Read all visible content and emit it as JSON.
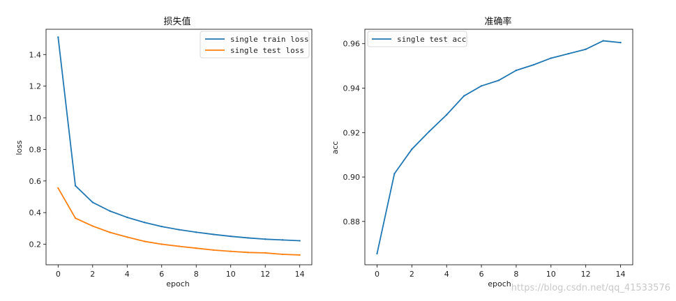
{
  "chart_data": [
    {
      "type": "line",
      "title": "损失值",
      "xlabel": "epoch",
      "ylabel": "loss",
      "xlim": [
        -0.7,
        14.7
      ],
      "ylim": [
        0.07,
        1.56
      ],
      "xticks": [
        0,
        2,
        4,
        6,
        8,
        10,
        12,
        14
      ],
      "yticks": [
        0.2,
        0.4,
        0.6,
        0.8,
        1.0,
        1.2,
        1.4
      ],
      "ytick_labels": [
        "0.2",
        "0.4",
        "0.6",
        "0.8",
        "1.0",
        "1.2",
        "1.4"
      ],
      "legend_position": "top-right",
      "x": [
        0,
        1,
        2,
        3,
        4,
        5,
        6,
        7,
        8,
        9,
        10,
        11,
        12,
        13,
        14
      ],
      "series": [
        {
          "name": "single train loss",
          "color": "#1f77b4",
          "values": [
            1.51,
            0.57,
            0.465,
            0.41,
            0.37,
            0.338,
            0.312,
            0.292,
            0.276,
            0.262,
            0.25,
            0.24,
            0.232,
            0.227,
            0.222
          ]
        },
        {
          "name": "single test loss",
          "color": "#ff7f0e",
          "values": [
            0.555,
            0.365,
            0.315,
            0.275,
            0.245,
            0.218,
            0.2,
            0.187,
            0.175,
            0.163,
            0.155,
            0.148,
            0.145,
            0.136,
            0.132
          ]
        }
      ]
    },
    {
      "type": "line",
      "title": "准确率",
      "xlabel": "epoch",
      "ylabel": "acc",
      "xlim": [
        -0.7,
        14.7
      ],
      "ylim": [
        0.8605,
        0.9665
      ],
      "xticks": [
        0,
        2,
        4,
        6,
        8,
        10,
        12,
        14
      ],
      "yticks": [
        0.88,
        0.9,
        0.92,
        0.94,
        0.96
      ],
      "ytick_labels": [
        "0.88",
        "0.90",
        "0.92",
        "0.94",
        "0.96"
      ],
      "legend_position": "top-left",
      "x": [
        0,
        1,
        2,
        3,
        4,
        5,
        6,
        7,
        8,
        9,
        10,
        11,
        12,
        13,
        14
      ],
      "series": [
        {
          "name": "single test acc",
          "color": "#1f77b4",
          "values": [
            0.8655,
            0.9015,
            0.9125,
            0.9205,
            0.928,
            0.9365,
            0.941,
            0.9435,
            0.948,
            0.9505,
            0.9535,
            0.9555,
            0.9575,
            0.9613,
            0.9605
          ]
        }
      ]
    }
  ],
  "watermark": "https://blog.csdn.net/qq_41533576"
}
